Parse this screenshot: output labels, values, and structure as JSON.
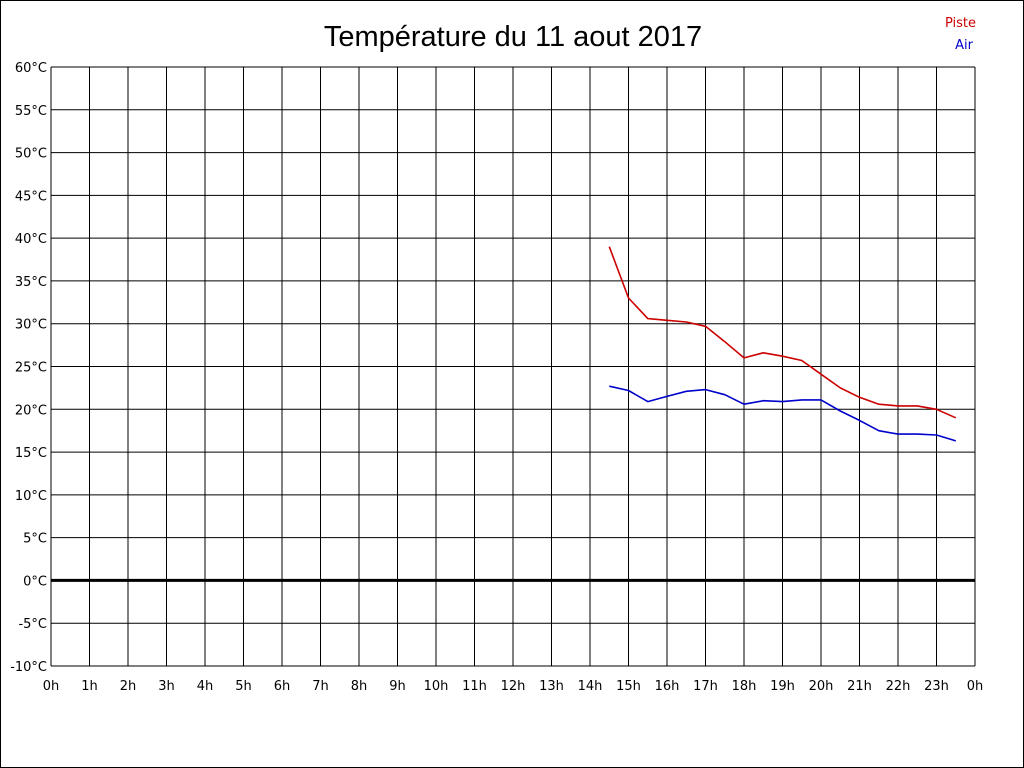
{
  "chart_data": {
    "type": "line",
    "title": "Température du 11 aout 2017",
    "xlabel": "",
    "ylabel": "",
    "x_ticks": [
      "0h",
      "1h",
      "2h",
      "3h",
      "4h",
      "5h",
      "6h",
      "7h",
      "8h",
      "9h",
      "10h",
      "11h",
      "12h",
      "13h",
      "14h",
      "15h",
      "16h",
      "17h",
      "18h",
      "19h",
      "20h",
      "21h",
      "22h",
      "23h",
      "0h"
    ],
    "y_ticks": [
      "60°C",
      "55°C",
      "50°C",
      "45°C",
      "40°C",
      "35°C",
      "30°C",
      "25°C",
      "20°C",
      "15°C",
      "10°C",
      "5°C",
      "0°C",
      "-5°C",
      "-10°C"
    ],
    "xlim": [
      0,
      24
    ],
    "ylim": [
      -10,
      60
    ],
    "grid": true,
    "zero_line": true,
    "legend_position": "top-right",
    "series": [
      {
        "name": "Piste",
        "color": "#cc0000",
        "x": [
          14.5,
          15.0,
          15.5,
          16.0,
          16.5,
          17.0,
          17.5,
          18.0,
          18.5,
          19.0,
          19.5,
          20.0,
          20.5,
          21.0,
          21.5,
          22.0,
          22.5,
          23.0,
          23.5
        ],
        "values": [
          39.0,
          33.0,
          30.6,
          30.4,
          30.2,
          29.7,
          27.9,
          26.0,
          26.6,
          26.2,
          25.7,
          24.1,
          22.5,
          21.4,
          20.6,
          20.4,
          20.4,
          20.0,
          19.0
        ]
      },
      {
        "name": "Air",
        "color": "#0000cc",
        "x": [
          14.5,
          15.0,
          15.5,
          16.0,
          16.5,
          17.0,
          17.5,
          18.0,
          18.5,
          19.0,
          19.5,
          20.0,
          20.5,
          21.0,
          21.5,
          22.0,
          22.5,
          23.0,
          23.5
        ],
        "values": [
          22.7,
          22.2,
          20.9,
          21.5,
          22.1,
          22.3,
          21.7,
          20.6,
          21.0,
          20.9,
          21.1,
          21.1,
          19.8,
          18.7,
          17.5,
          17.1,
          17.1,
          17.0,
          16.3
        ]
      }
    ]
  }
}
